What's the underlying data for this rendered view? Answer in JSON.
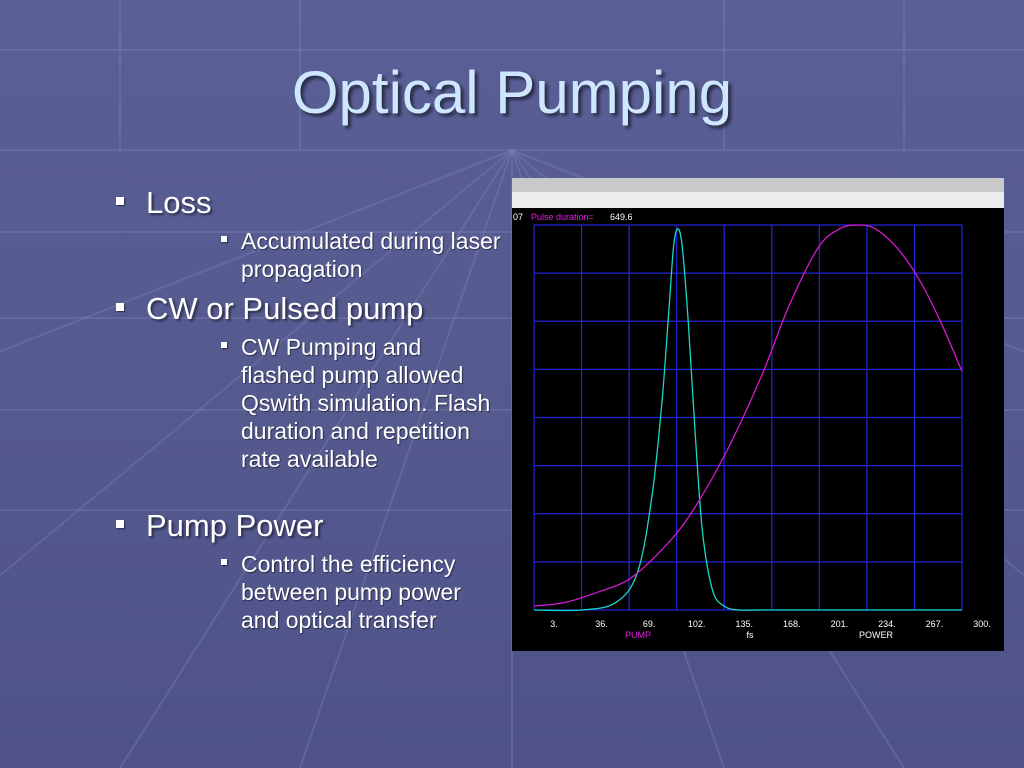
{
  "slide": {
    "title": "Optical Pumping",
    "bullets": [
      {
        "text": "Loss",
        "sub": [
          "Accumulated during laser propagation"
        ]
      },
      {
        "text": "CW or Pulsed pump",
        "sub": [
          "CW Pumping and flashed pump allowed Qswith simulation. Flash duration and repetition rate available"
        ]
      },
      {
        "text": "Pump Power",
        "sub": [
          "Control the efficiency between pump power and optical transfer"
        ]
      }
    ]
  },
  "screenshot": {
    "header_fragment": "07",
    "header_label": "Pulse duration=",
    "header_value": "649.6",
    "legend_left": "PUMP",
    "legend_mid": "fs",
    "legend_right": "POWER",
    "colors": {
      "grid": "#2424d8",
      "pump": "#19d6c8",
      "power": "#d21ad2",
      "label_pink": "#e020e0",
      "text": "#ffffff",
      "panel": "#000000"
    }
  },
  "chart_data": {
    "type": "line",
    "title": "",
    "xlabel": "fs",
    "ylabel": "",
    "x_ticks": [
      "3.",
      "36.",
      "69.",
      "102.",
      "135.",
      "168.",
      "201.",
      "234.",
      "267.",
      "300."
    ],
    "xlim": [
      3,
      300
    ],
    "ylim": [
      0,
      1
    ],
    "grid": true,
    "legend": "bottom",
    "series": [
      {
        "name": "PUMP",
        "color": "#19d6c8",
        "x": [
          3,
          36,
          60,
          75,
          85,
          92,
          97,
          100,
          103,
          106,
          110,
          115,
          120,
          127,
          135,
          145,
          160,
          200,
          250,
          300
        ],
        "y": [
          0.0,
          0.0,
          0.02,
          0.1,
          0.3,
          0.55,
          0.8,
          0.95,
          0.99,
          0.94,
          0.75,
          0.45,
          0.2,
          0.05,
          0.01,
          0.0,
          0.0,
          0.0,
          0.0,
          0.0
        ]
      },
      {
        "name": "POWER",
        "color": "#d21ad2",
        "x": [
          3,
          25,
          50,
          69,
          90,
          110,
          135,
          160,
          180,
          200,
          215,
          228,
          240,
          255,
          270,
          285,
          300
        ],
        "y": [
          0.01,
          0.02,
          0.05,
          0.08,
          0.15,
          0.24,
          0.4,
          0.6,
          0.79,
          0.94,
          0.99,
          1.0,
          0.99,
          0.94,
          0.86,
          0.75,
          0.62
        ]
      }
    ]
  }
}
